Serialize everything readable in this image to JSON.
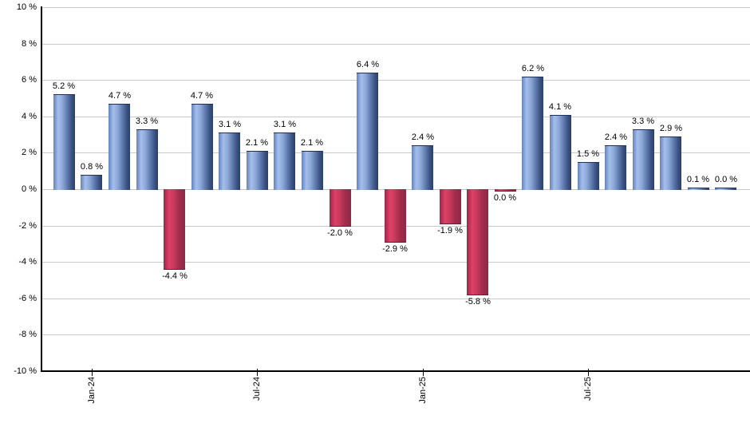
{
  "chart_data": {
    "type": "bar",
    "title": "",
    "xlabel": "",
    "ylabel": "",
    "ylim": [
      -10,
      10
    ],
    "ytick_step": 2,
    "grid": true,
    "legend": "none",
    "yticks": [
      {
        "value": 10,
        "label": "10 %"
      },
      {
        "value": 8,
        "label": "8 %"
      },
      {
        "value": 6,
        "label": "6 %"
      },
      {
        "value": 4,
        "label": "4 %"
      },
      {
        "value": 2,
        "label": "2 %"
      },
      {
        "value": 0,
        "label": "0 %"
      },
      {
        "value": -2,
        "label": "-2 %"
      },
      {
        "value": -4,
        "label": "-4 %"
      },
      {
        "value": -6,
        "label": "-6 %"
      },
      {
        "value": -8,
        "label": "-8 %"
      },
      {
        "value": -10,
        "label": "-10 %"
      }
    ],
    "xticks": [
      {
        "bar_index": 1,
        "label": "Jan-24"
      },
      {
        "bar_index": 7,
        "label": "Jul-24"
      },
      {
        "bar_index": 13,
        "label": "Jan-25"
      },
      {
        "bar_index": 19,
        "label": "Jul-25"
      }
    ],
    "bars": [
      {
        "value": 5.2,
        "label": "5.2 %",
        "color": "blue"
      },
      {
        "value": 0.8,
        "label": "0.8 %",
        "color": "blue"
      },
      {
        "value": 4.7,
        "label": "4.7 %",
        "color": "blue"
      },
      {
        "value": 3.3,
        "label": "3.3 %",
        "color": "blue"
      },
      {
        "value": -4.4,
        "label": "-4.4 %",
        "color": "red"
      },
      {
        "value": 4.7,
        "label": "4.7 %",
        "color": "blue"
      },
      {
        "value": 3.1,
        "label": "3.1 %",
        "color": "blue"
      },
      {
        "value": 2.1,
        "label": "2.1 %",
        "color": "blue"
      },
      {
        "value": 3.1,
        "label": "3.1 %",
        "color": "blue"
      },
      {
        "value": 2.1,
        "label": "2.1 %",
        "color": "blue"
      },
      {
        "value": -2.0,
        "label": "-2.0 %",
        "color": "red"
      },
      {
        "value": 6.4,
        "label": "6.4 %",
        "color": "blue"
      },
      {
        "value": -2.9,
        "label": "-2.9 %",
        "color": "red"
      },
      {
        "value": 2.4,
        "label": "2.4 %",
        "color": "blue"
      },
      {
        "value": -1.9,
        "label": "-1.9 %",
        "color": "red"
      },
      {
        "value": -5.8,
        "label": "-5.8 %",
        "color": "red"
      },
      {
        "value": 0.0,
        "label": "0.0 %",
        "color": "red"
      },
      {
        "value": 6.2,
        "label": "6.2 %",
        "color": "blue"
      },
      {
        "value": 4.1,
        "label": "4.1 %",
        "color": "blue"
      },
      {
        "value": 1.5,
        "label": "1.5 %",
        "color": "blue"
      },
      {
        "value": 2.4,
        "label": "2.4 %",
        "color": "blue"
      },
      {
        "value": 3.3,
        "label": "3.3 %",
        "color": "blue"
      },
      {
        "value": 2.9,
        "label": "2.9 %",
        "color": "blue"
      },
      {
        "value": 0.1,
        "label": "0.1 %",
        "color": "blue"
      },
      {
        "value": 0.0,
        "label": "0.0 %",
        "color": "blue"
      }
    ],
    "colors": {
      "positive_left": "#6283bd",
      "positive_highlight": "#a6bfec",
      "positive_dark": "#2c3f66",
      "negative_left": "#a32446",
      "negative_highlight": "#de4168",
      "negative_dark": "#8a2a44",
      "gridline": "#c9c9c9",
      "axis": "#000000",
      "label_text": "#000000"
    }
  }
}
